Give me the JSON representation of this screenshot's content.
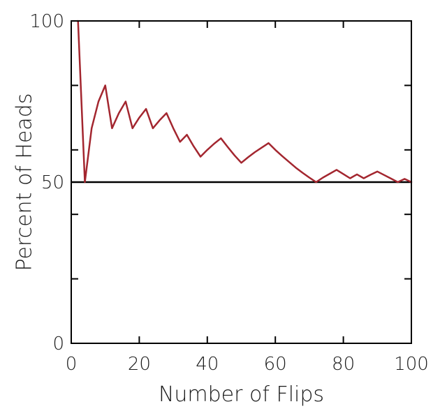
{
  "chart_data": {
    "type": "line",
    "xlabel": "Number of Flips",
    "ylabel": "Percent of Heads",
    "xlim": [
      0,
      100
    ],
    "ylim": [
      0,
      100
    ],
    "x_ticks": [
      0,
      20,
      40,
      60,
      80,
      100
    ],
    "y_tick_labels": [
      0,
      50,
      100
    ],
    "y_minor_ticks": [
      20,
      40,
      60,
      80
    ],
    "grid": false,
    "reference_line": {
      "y": 50
    },
    "colors": {
      "series": "#a3262f",
      "reference": "#000000",
      "axis": "#000000"
    },
    "series": [
      {
        "x": [
          2,
          4,
          6,
          8,
          10,
          12,
          14,
          16,
          18,
          20,
          22,
          24,
          26,
          28,
          30,
          32,
          34,
          36,
          38,
          40,
          42,
          44,
          46,
          48,
          50,
          52,
          54,
          56,
          58,
          60,
          62,
          64,
          66,
          68,
          70,
          72,
          74,
          76,
          78,
          80,
          82,
          84,
          86,
          88,
          90,
          92,
          94,
          96,
          98,
          100
        ],
        "y": [
          100,
          50,
          66.7,
          75,
          80,
          66.7,
          71.4,
          75,
          66.7,
          70,
          72.7,
          66.7,
          69.2,
          71.4,
          66.7,
          62.5,
          64.7,
          61.1,
          57.9,
          60,
          61.9,
          63.6,
          60.9,
          58.3,
          56,
          57.7,
          59.3,
          60.7,
          62.1,
          60,
          58.1,
          56.3,
          54.5,
          52.9,
          51.4,
          50,
          51.4,
          52.6,
          53.8,
          52.5,
          51.2,
          52.4,
          51.2,
          52.3,
          53.3,
          52.2,
          51.1,
          50,
          51,
          50
        ]
      }
    ]
  }
}
